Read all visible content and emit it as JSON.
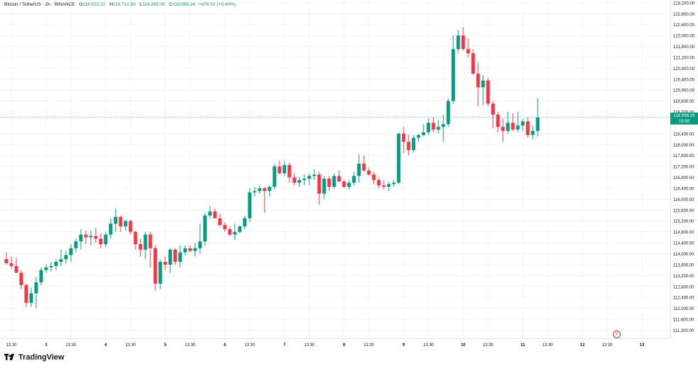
{
  "header": {
    "symbol": "Bitcoin / TetherUS · 2h · BINANCE",
    "open_label": "O",
    "open": "118,522.22",
    "high_label": "H",
    "high": "119,712.60",
    "low_label": "L",
    "low": "118,285.00",
    "close_label": "C",
    "close": "118,998.24",
    "change": "+476.02 (+0.40%)"
  },
  "last_price": {
    "value": "118,998.24",
    "countdown": "15:59"
  },
  "colors": {
    "up": "#089981",
    "down": "#f23645",
    "grid": "#f2f3f5",
    "axis_text": "#131722",
    "price_line": "#089981"
  },
  "footer": {
    "brand": "TradingView"
  },
  "icons": {
    "flash": "flash-icon",
    "logo": "tradingview-logo-icon"
  },
  "chart_data": {
    "type": "candlestick",
    "title": "Bitcoin / TetherUS · 2h · BINANCE",
    "y_range": [
      110900,
      123300
    ],
    "y_ticks": [
      "123,200.00",
      "122,800.00",
      "122,400.00",
      "122,000.00",
      "121,600.00",
      "121,200.00",
      "120,800.00",
      "120,400.00",
      "120,000.00",
      "119,600.00",
      "119,200.00",
      "118,400.00",
      "118,000.00",
      "117,600.00",
      "117,200.00",
      "116,800.00",
      "116,400.00",
      "116,000.00",
      "115,600.00",
      "115,200.00",
      "114,800.00",
      "114,400.00",
      "114,000.00",
      "113,600.00",
      "113,200.00",
      "112,800.00",
      "112,400.00",
      "112,000.00",
      "111,600.00",
      "111,200.00"
    ],
    "x_ticks": [
      "13:30",
      "3",
      "13:30",
      "4",
      "13:30",
      "5",
      "13:30",
      "6",
      "13:30",
      "7",
      "13:30",
      "8",
      "13:30",
      "9",
      "13:30",
      "10",
      "13:30",
      "11",
      "13:30",
      "12",
      "13:30",
      "13"
    ],
    "x_tick_index": [
      1,
      8,
      13,
      20,
      25,
      32,
      37,
      44,
      49,
      56,
      61,
      68,
      73,
      80,
      85,
      92,
      97,
      104,
      109,
      116,
      121,
      128
    ],
    "grid": true,
    "candles": [
      [
        113800,
        114050,
        113600,
        113650
      ],
      [
        113650,
        113900,
        113450,
        113550
      ],
      [
        113550,
        113850,
        113350,
        113300
      ],
      [
        113300,
        113400,
        112700,
        112850
      ],
      [
        112850,
        112900,
        112050,
        112200
      ],
      [
        112200,
        112750,
        112050,
        112550
      ],
      [
        112550,
        113150,
        112000,
        112950
      ],
      [
        112950,
        113500,
        112850,
        113400
      ],
      [
        113400,
        113600,
        113300,
        113500
      ],
      [
        113500,
        113700,
        113350,
        113550
      ],
      [
        113550,
        113800,
        113400,
        113700
      ],
      [
        113700,
        114150,
        113550,
        113800
      ],
      [
        113800,
        114100,
        113650,
        113950
      ],
      [
        113950,
        114350,
        113700,
        114200
      ],
      [
        114200,
        114550,
        114050,
        114450
      ],
      [
        114450,
        114900,
        114150,
        114700
      ],
      [
        114700,
        114850,
        114350,
        114600
      ],
      [
        114600,
        114850,
        114300,
        114650
      ],
      [
        114650,
        114950,
        114400,
        114550
      ],
      [
        114550,
        114750,
        114200,
        114350
      ],
      [
        114350,
        114800,
        114250,
        114700
      ],
      [
        114700,
        115300,
        114550,
        115100
      ],
      [
        115100,
        115650,
        114800,
        115350
      ],
      [
        115350,
        115400,
        114800,
        115000
      ],
      [
        115000,
        115250,
        114850,
        115200
      ],
      [
        115200,
        115250,
        114700,
        114800
      ],
      [
        114800,
        114850,
        114150,
        114350
      ],
      [
        114350,
        114550,
        113900,
        114150
      ],
      [
        114150,
        114800,
        113800,
        114700
      ],
      [
        114700,
        114800,
        113500,
        114200
      ],
      [
        114200,
        114300,
        112650,
        112900
      ],
      [
        112900,
        113800,
        112700,
        113700
      ],
      [
        113700,
        113900,
        113400,
        113600
      ],
      [
        113600,
        114200,
        113300,
        114150
      ],
      [
        114150,
        114200,
        113600,
        113700
      ],
      [
        113700,
        114300,
        113500,
        114050
      ],
      [
        114050,
        114300,
        113950,
        114200
      ],
      [
        114200,
        114300,
        114050,
        114100
      ],
      [
        114100,
        114400,
        113900,
        114200
      ],
      [
        114200,
        115100,
        114000,
        114450
      ],
      [
        114450,
        115500,
        114300,
        115400
      ],
      [
        115400,
        115750,
        115300,
        115550
      ],
      [
        115550,
        115650,
        115300,
        115300
      ],
      [
        115300,
        115450,
        115000,
        115050
      ],
      [
        115050,
        115150,
        114800,
        114900
      ],
      [
        114900,
        115000,
        114650,
        114700
      ],
      [
        114700,
        115100,
        114500,
        114800
      ],
      [
        114800,
        115050,
        114750,
        115000
      ],
      [
        115000,
        115400,
        114900,
        115300
      ],
      [
        115300,
        116400,
        115150,
        116250
      ],
      [
        116250,
        116450,
        116100,
        116300
      ],
      [
        116300,
        116500,
        116200,
        116400
      ],
      [
        116400,
        116450,
        115500,
        116300
      ],
      [
        116300,
        116500,
        116100,
        116450
      ],
      [
        116450,
        117300,
        116350,
        117200
      ],
      [
        117200,
        117400,
        116900,
        116950
      ],
      [
        116950,
        117400,
        116850,
        117250
      ],
      [
        117250,
        117350,
        116600,
        116800
      ],
      [
        116800,
        116950,
        116500,
        116600
      ],
      [
        116600,
        116800,
        116450,
        116700
      ],
      [
        116700,
        116900,
        116500,
        116750
      ],
      [
        116750,
        116950,
        116500,
        116850
      ],
      [
        116850,
        117100,
        116700,
        116900
      ],
      [
        116900,
        117000,
        115800,
        116200
      ],
      [
        116200,
        116850,
        116000,
        116750
      ],
      [
        116750,
        116850,
        116300,
        116450
      ],
      [
        116450,
        116950,
        116400,
        116850
      ],
      [
        116850,
        117050,
        116600,
        116650
      ],
      [
        116650,
        116700,
        116400,
        116450
      ],
      [
        116450,
        116700,
        116350,
        116600
      ],
      [
        116600,
        117000,
        116500,
        116850
      ],
      [
        116850,
        117650,
        116600,
        117300
      ],
      [
        117300,
        117600,
        117000,
        117050
      ],
      [
        117050,
        117150,
        116850,
        116900
      ],
      [
        116900,
        117000,
        116550,
        116700
      ],
      [
        116700,
        116800,
        116400,
        116500
      ],
      [
        116500,
        116700,
        116350,
        116450
      ],
      [
        116450,
        116650,
        116300,
        116550
      ],
      [
        116550,
        116700,
        116450,
        116600
      ],
      [
        116600,
        118450,
        116550,
        118400
      ],
      [
        118400,
        118650,
        117700,
        118100
      ],
      [
        118100,
        118350,
        117600,
        117800
      ],
      [
        117800,
        118350,
        117700,
        118250
      ],
      [
        118250,
        118400,
        118100,
        118350
      ],
      [
        118350,
        118750,
        118300,
        118450
      ],
      [
        118450,
        118950,
        118350,
        118800
      ],
      [
        118800,
        119000,
        118450,
        118550
      ],
      [
        118550,
        118900,
        118400,
        118650
      ],
      [
        118650,
        119100,
        118100,
        118750
      ],
      [
        118750,
        119700,
        118650,
        119600
      ],
      [
        119600,
        122000,
        119500,
        121500
      ],
      [
        121500,
        122200,
        121350,
        122000
      ],
      [
        122000,
        122300,
        121450,
        121500
      ],
      [
        121500,
        121900,
        121200,
        121350
      ],
      [
        121350,
        121500,
        120550,
        120600
      ],
      [
        120600,
        121000,
        119400,
        120100
      ],
      [
        120100,
        120550,
        119450,
        120350
      ],
      [
        120350,
        120450,
        119400,
        119500
      ],
      [
        119500,
        119600,
        118600,
        119100
      ],
      [
        119100,
        119200,
        118450,
        118650
      ],
      [
        118650,
        118950,
        118100,
        118500
      ],
      [
        118500,
        119200,
        118400,
        118800
      ],
      [
        118800,
        119150,
        118500,
        118550
      ],
      [
        118550,
        119200,
        118450,
        118700
      ],
      [
        118700,
        118950,
        118500,
        118850
      ],
      [
        118850,
        119000,
        118250,
        118350
      ],
      [
        118350,
        118700,
        118200,
        118500
      ],
      [
        118500,
        119700,
        118300,
        118998
      ]
    ],
    "last_price": 118998.24
  }
}
